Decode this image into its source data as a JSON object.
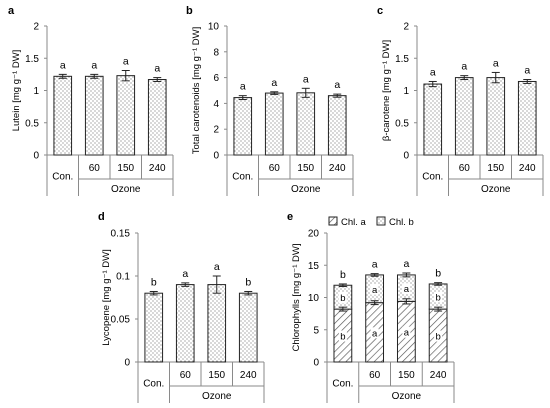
{
  "chart_data": [
    {
      "type": "bar",
      "panel_label": "a",
      "ylabel": "Lutein [mg g⁻¹ DW]",
      "ylim": [
        0,
        2
      ],
      "yticks": [
        "0",
        "0.5",
        "1",
        "1.5",
        "2"
      ],
      "categories": [
        "Con.",
        "60",
        "150",
        "240"
      ],
      "group_label": "Ozone",
      "values": [
        1.22,
        1.22,
        1.23,
        1.17
      ],
      "errors": [
        0.03,
        0.03,
        0.08,
        0.03
      ],
      "letters": [
        "a",
        "a",
        "a",
        "a"
      ]
    },
    {
      "type": "bar",
      "panel_label": "b",
      "ylabel": "Total carotenoids [mg g⁻¹ DW]",
      "ylim": [
        0,
        10
      ],
      "yticks": [
        "0",
        "2",
        "4",
        "6",
        "8",
        "10"
      ],
      "categories": [
        "Con.",
        "60",
        "150",
        "240"
      ],
      "group_label": "Ozone",
      "values": [
        4.45,
        4.8,
        4.82,
        4.6
      ],
      "errors": [
        0.15,
        0.1,
        0.35,
        0.12
      ],
      "letters": [
        "a",
        "a",
        "a",
        "a"
      ]
    },
    {
      "type": "bar",
      "panel_label": "c",
      "ylabel": "β-carotene [mg g⁻¹ DW]",
      "ylim": [
        0,
        2
      ],
      "yticks": [
        "0",
        "0.5",
        "1",
        "1.5",
        "2"
      ],
      "categories": [
        "Con.",
        "60",
        "150",
        "240"
      ],
      "group_label": "Ozone",
      "values": [
        1.1,
        1.2,
        1.2,
        1.14
      ],
      "errors": [
        0.04,
        0.03,
        0.08,
        0.03
      ],
      "letters": [
        "a",
        "a",
        "a",
        "a"
      ]
    },
    {
      "type": "bar",
      "panel_label": "d",
      "ylabel": "Lycopene [mg g⁻¹ DW]",
      "ylim": [
        0,
        0.15
      ],
      "yticks": [
        "0",
        "0.05",
        "0.1",
        "0.15"
      ],
      "categories": [
        "Con.",
        "60",
        "150",
        "240"
      ],
      "group_label": "Ozone",
      "values": [
        0.08,
        0.09,
        0.09,
        0.08
      ],
      "errors": [
        0.002,
        0.002,
        0.01,
        0.002
      ],
      "letters": [
        "b",
        "a",
        "a",
        "b"
      ]
    },
    {
      "type": "stacked_bar",
      "panel_label": "e",
      "ylabel": "Chlorophylls [mg g⁻¹ DW]",
      "ylim": [
        0,
        20
      ],
      "yticks": [
        "0",
        "5",
        "10",
        "15",
        "20"
      ],
      "categories": [
        "Con.",
        "60",
        "150",
        "240"
      ],
      "group_label": "Ozone",
      "legend": [
        "Chl. a",
        "Chl. b"
      ],
      "series": [
        {
          "name": "Chl. a",
          "values": [
            8.2,
            9.2,
            9.4,
            8.2
          ],
          "errors": [
            0.3,
            0.3,
            0.4,
            0.3
          ],
          "letters": [
            "b",
            "a",
            "a",
            "b"
          ]
        },
        {
          "name": "Chl. b",
          "values": [
            3.7,
            4.3,
            4.1,
            3.9
          ],
          "errors": [
            0.2,
            0.2,
            0.3,
            0.2
          ],
          "letters": [
            "b",
            "a",
            "a",
            "b"
          ]
        }
      ],
      "total_letters": [
        "b",
        "a",
        "a",
        "b"
      ]
    }
  ]
}
